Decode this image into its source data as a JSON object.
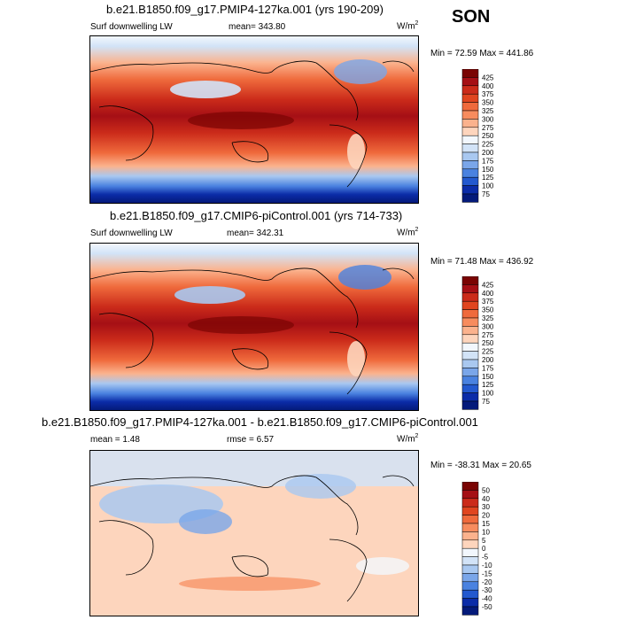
{
  "season": "SON",
  "units_label": "W/m",
  "units_sup": "2",
  "panels": [
    {
      "title": "b.e21.B1850.f09_g17.PMIP4-127ka.001 (yrs 190-209)",
      "variable": "Surf downwelling LW",
      "mean_text": "mean= 343.80",
      "minmax": "Min = 72.59 Max = 441.86"
    },
    {
      "title": "b.e21.B1850.f09_g17.CMIP6-piControl.001 (yrs 714-733)",
      "variable": "Surf downwelling LW",
      "mean_text": "mean= 342.31",
      "minmax": "Min = 71.48 Max = 436.92"
    },
    {
      "title": "b.e21.B1850.f09_g17.PMIP4-127ka.001 - b.e21.B1850.f09_g17.CMIP6-piControl.001",
      "mean_text": "mean = 1.48",
      "rmse_text": "rmse = 6.57",
      "minmax": "Min = -38.31 Max = 20.65"
    }
  ],
  "chart_data": [
    {
      "type": "heatmap",
      "title": "b.e21.B1850.f09_g17.PMIP4-127ka.001 (yrs 190-209)",
      "variable": "Surf downwelling LW",
      "units": "W/m2",
      "mean": 343.8,
      "min": 72.59,
      "max": 441.86,
      "colorbar_levels": [
        "425",
        "400",
        "375",
        "350",
        "325",
        "300",
        "275",
        "250",
        "225",
        "200",
        "175",
        "150",
        "125",
        "100",
        "75"
      ],
      "colorbar_colors": [
        "#7a0403",
        "#a50f15",
        "#cb2b1a",
        "#e0451f",
        "#ef6a3c",
        "#f78c5e",
        "#fbb28d",
        "#fdd5bd",
        "#f2f7fd",
        "#d2e3f7",
        "#a9c8f0",
        "#7aa6e9",
        "#4a82e0",
        "#2359cf",
        "#0b2ca8",
        "#041a7a"
      ],
      "xlabel": "",
      "ylabel": ""
    },
    {
      "type": "heatmap",
      "title": "b.e21.B1850.f09_g17.CMIP6-piControl.001 (yrs 714-733)",
      "variable": "Surf downwelling LW",
      "units": "W/m2",
      "mean": 342.31,
      "min": 71.48,
      "max": 436.92,
      "colorbar_levels": [
        "425",
        "400",
        "375",
        "350",
        "325",
        "300",
        "275",
        "250",
        "225",
        "200",
        "175",
        "150",
        "125",
        "100",
        "75"
      ],
      "colorbar_colors": [
        "#7a0403",
        "#a50f15",
        "#cb2b1a",
        "#e0451f",
        "#ef6a3c",
        "#f78c5e",
        "#fbb28d",
        "#fdd5bd",
        "#f2f7fd",
        "#d2e3f7",
        "#a9c8f0",
        "#7aa6e9",
        "#4a82e0",
        "#2359cf",
        "#0b2ca8",
        "#041a7a"
      ],
      "xlabel": "",
      "ylabel": ""
    },
    {
      "type": "heatmap",
      "title": "b.e21.B1850.f09_g17.PMIP4-127ka.001 - b.e21.B1850.f09_g17.CMIP6-piControl.001",
      "units": "W/m2",
      "mean": 1.48,
      "rmse": 6.57,
      "min": -38.31,
      "max": 20.65,
      "colorbar_levels": [
        "50",
        "40",
        "30",
        "20",
        "15",
        "10",
        "5",
        "0",
        "-5",
        "-10",
        "-15",
        "-20",
        "-30",
        "-40",
        "-50"
      ],
      "colorbar_colors": [
        "#7a0403",
        "#a50f15",
        "#cb2b1a",
        "#e0451f",
        "#ef6a3c",
        "#f78c5e",
        "#fbb28d",
        "#fdd5bd",
        "#f2f7fd",
        "#d2e3f7",
        "#a9c8f0",
        "#7aa6e9",
        "#4a82e0",
        "#2359cf",
        "#0b2ca8",
        "#041a7a"
      ],
      "xlabel": "",
      "ylabel": ""
    }
  ]
}
